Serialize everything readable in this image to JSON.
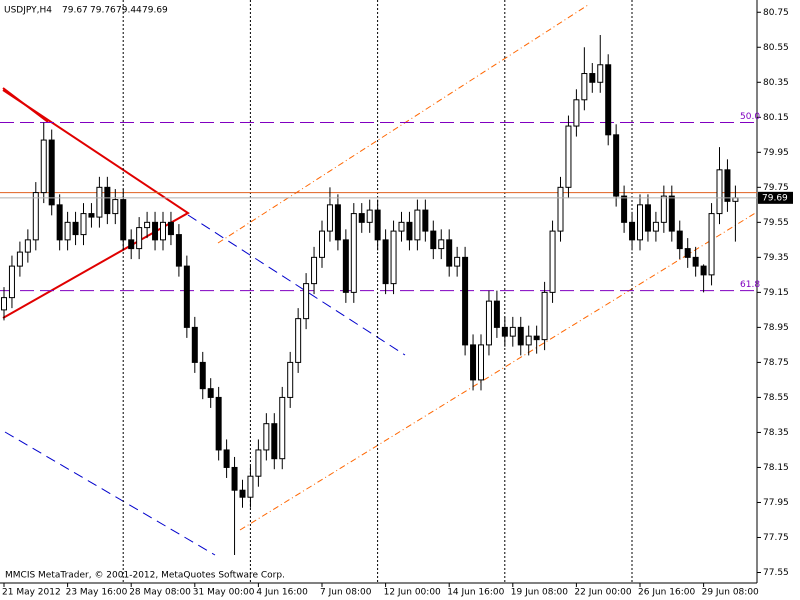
{
  "chart_data": {
    "type": "candlestick",
    "symbol": "USDJPY,H4",
    "footer": "MMCIS MetaTrader, © 2001-2012, MetaQuotes Software Corp.",
    "categories": [
      "21 May 2012",
      null,
      null,
      null,
      null,
      null,
      null,
      null,
      "23 May 16:00",
      null,
      null,
      null,
      null,
      null,
      null,
      null,
      "28 May 08:00",
      null,
      null,
      null,
      null,
      null,
      null,
      null,
      "31 May 00:00",
      null,
      null,
      null,
      null,
      null,
      null,
      null,
      "4 Jun 16:00",
      null,
      null,
      null,
      null,
      null,
      null,
      null,
      "7 Jun 08:00",
      null,
      null,
      null,
      null,
      null,
      null,
      null,
      "12 Jun 00:00",
      null,
      null,
      null,
      null,
      null,
      null,
      null,
      "14 Jun 16:00",
      null,
      null,
      null,
      null,
      null,
      null,
      null,
      "19 Jun 08:00",
      null,
      null,
      null,
      null,
      null,
      null,
      null,
      "22 Jun 00:00",
      null,
      null,
      null,
      null,
      null,
      null,
      null,
      "26 Jun 16:00",
      null,
      null,
      null,
      null,
      null,
      null,
      null,
      "29 Jun 08:00",
      null,
      null,
      null,
      null
    ],
    "open": [
      79.05,
      79.12,
      79.3,
      79.38,
      79.45,
      79.72,
      80.02,
      79.65,
      79.45,
      79.55,
      79.48,
      79.6,
      79.58,
      79.75,
      79.6,
      79.68,
      79.45,
      79.4,
      79.52,
      79.55,
      79.45,
      79.55,
      79.48,
      79.3,
      78.95,
      78.75,
      78.6,
      78.55,
      78.25,
      78.15,
      78.02,
      77.98,
      78.1,
      78.25,
      78.4,
      78.2,
      78.55,
      78.75,
      79.0,
      79.2,
      79.35,
      79.5,
      79.65,
      79.45,
      79.15,
      79.6,
      79.55,
      79.62,
      79.45,
      79.2,
      79.5,
      79.55,
      79.45,
      79.62,
      79.5,
      79.4,
      79.45,
      79.3,
      79.35,
      78.85,
      78.65,
      78.85,
      79.1,
      78.95,
      78.9,
      78.95,
      78.85,
      78.9,
      78.88,
      79.15,
      79.5,
      79.75,
      80.1,
      80.25,
      80.4,
      80.35,
      80.45,
      80.05,
      79.7,
      79.55,
      79.45,
      79.65,
      79.5,
      79.55,
      79.7,
      79.5,
      79.4,
      79.35,
      79.3,
      79.25,
      79.6,
      79.85,
      79.67
    ],
    "high": [
      79.18,
      79.36,
      79.44,
      79.51,
      79.78,
      80.12,
      80.08,
      79.71,
      79.61,
      79.61,
      79.66,
      79.66,
      79.81,
      79.81,
      79.74,
      79.74,
      79.51,
      79.58,
      79.61,
      79.61,
      79.61,
      79.61,
      79.54,
      79.36,
      79.01,
      78.81,
      78.66,
      78.61,
      78.31,
      78.21,
      78.08,
      78.16,
      78.31,
      78.46,
      78.46,
      78.61,
      78.81,
      79.06,
      79.26,
      79.41,
      79.56,
      79.75,
      79.71,
      79.51,
      79.66,
      79.66,
      79.68,
      79.68,
      79.51,
      79.56,
      79.61,
      79.61,
      79.68,
      79.68,
      79.56,
      79.51,
      79.51,
      79.41,
      79.41,
      78.91,
      78.91,
      79.16,
      79.16,
      79.01,
      79.01,
      79.01,
      78.96,
      78.96,
      79.21,
      79.56,
      79.81,
      80.16,
      80.31,
      80.55,
      80.46,
      80.62,
      80.51,
      80.11,
      79.76,
      79.61,
      79.71,
      79.71,
      79.61,
      79.76,
      79.76,
      79.56,
      79.46,
      79.41,
      79.31,
      79.66,
      79.98,
      79.91,
      79.76
    ],
    "low": [
      78.99,
      79.06,
      79.24,
      79.32,
      79.39,
      79.66,
      79.59,
      79.39,
      79.39,
      79.42,
      79.42,
      79.52,
      79.52,
      79.54,
      79.54,
      79.39,
      79.34,
      79.34,
      79.46,
      79.39,
      79.39,
      79.42,
      79.24,
      78.89,
      78.69,
      78.54,
      78.49,
      78.19,
      78.09,
      77.65,
      77.92,
      77.92,
      78.04,
      78.19,
      78.14,
      78.14,
      78.49,
      78.69,
      78.94,
      79.14,
      79.29,
      79.44,
      79.39,
      79.09,
      79.09,
      79.49,
      79.49,
      79.39,
      79.14,
      79.14,
      79.44,
      79.39,
      79.39,
      79.44,
      79.34,
      79.34,
      79.24,
      79.24,
      78.79,
      78.59,
      78.59,
      78.79,
      78.89,
      78.84,
      78.84,
      78.79,
      78.79,
      78.8,
      78.82,
      79.09,
      79.44,
      79.69,
      80.04,
      80.19,
      80.29,
      80.29,
      79.99,
      79.64,
      79.49,
      79.39,
      79.39,
      79.44,
      79.44,
      79.49,
      79.44,
      79.34,
      79.29,
      79.24,
      79.15,
      79.19,
      79.54,
      79.61,
      79.44
    ],
    "close": [
      79.12,
      79.3,
      79.38,
      79.45,
      79.72,
      80.02,
      79.65,
      79.45,
      79.55,
      79.48,
      79.6,
      79.58,
      79.75,
      79.6,
      79.68,
      79.45,
      79.4,
      79.52,
      79.55,
      79.45,
      79.55,
      79.48,
      79.3,
      78.95,
      78.75,
      78.6,
      78.55,
      78.25,
      78.15,
      78.02,
      77.98,
      78.1,
      78.25,
      78.4,
      78.2,
      78.55,
      78.75,
      79.0,
      79.2,
      79.35,
      79.5,
      79.65,
      79.45,
      79.15,
      79.6,
      79.55,
      79.62,
      79.45,
      79.2,
      79.5,
      79.55,
      79.45,
      79.62,
      79.5,
      79.4,
      79.45,
      79.3,
      79.35,
      78.85,
      78.65,
      78.85,
      79.1,
      78.95,
      78.9,
      78.95,
      78.85,
      78.9,
      78.88,
      79.15,
      79.5,
      79.75,
      80.1,
      80.25,
      80.4,
      80.35,
      80.45,
      80.05,
      79.7,
      79.55,
      79.45,
      79.65,
      79.5,
      79.55,
      79.7,
      79.5,
      79.4,
      79.35,
      79.3,
      79.25,
      79.6,
      79.85,
      79.67,
      79.69
    ],
    "ylim": [
      77.49,
      80.82
    ],
    "yticks": [
      80.75,
      80.55,
      80.35,
      80.15,
      79.95,
      79.75,
      79.55,
      79.35,
      79.15,
      78.95,
      78.75,
      78.55,
      78.35,
      78.15,
      77.95,
      77.75,
      77.55
    ],
    "levels": [
      {
        "value": 80.12,
        "label": "50.0"
      },
      {
        "value": 79.16,
        "label": "61.8"
      }
    ],
    "alert_line": 79.72,
    "up_color": "#ffffff",
    "down_color": "#000000",
    "outline_color": "#000000"
  }
}
